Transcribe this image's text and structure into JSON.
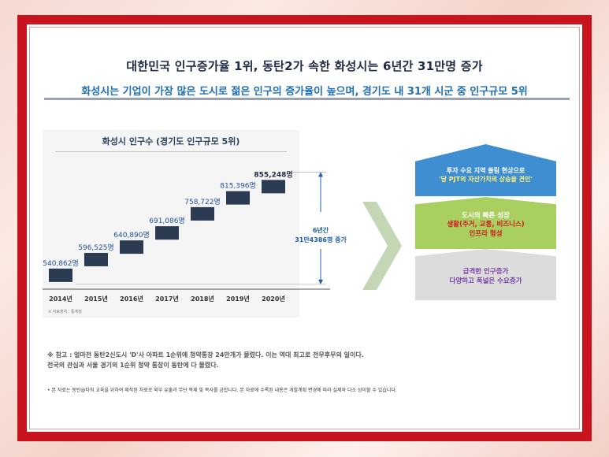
{
  "header": {
    "title": "대한민국 인구증가율 1위, 동탄2가 속한 화성시는 6년간 31만명 증가",
    "subtitle": "화성시는 기업이 가장 많은 도시로 젊은 인구의 증가율이 높으며, 경기도 내 31개 시군 중 인구규모 5위"
  },
  "chart_data": {
    "type": "bar",
    "title": "화성시 인구수 (경기도 인구규모 5위)",
    "categories": [
      "2014년",
      "2015년",
      "2016년",
      "2017년",
      "2018년",
      "2019년",
      "2020년"
    ],
    "values": [
      540862,
      596525,
      640890,
      691086,
      758722,
      815396,
      855248
    ],
    "value_labels": [
      "540,862명",
      "596,525명",
      "640,890명",
      "691,086명",
      "758,722명",
      "815,396명",
      "855,248명"
    ],
    "ylim": [
      500000,
      880000
    ],
    "bar_color": "#2b3c52",
    "annotation": {
      "line1": "6년간",
      "line2": "31만4386명 증가",
      "color": "#1f5fa8"
    },
    "source": "※ 자료출처 : 통계청"
  },
  "notes": {
    "line1": "※ 참고 : 얼마전 동탄2신도시 'D'사 아파트 1순위에 청약통장 24만개가 몰렸다. 이는 역대 최고로 전무후무의 일이다.",
    "line2": "전국의 관심과 서울 경기의 1순위 청약 통장이 동탄에 다 몰렸다.",
    "disclaimer": "• 본 자료는 동탄@타워 교육을 위하여 제작된 자료로 외부 유출과 무단 복제 및 복사를 금합니다. 본 자료에 수록된 내용은 개발계획 변경에 따라 실제와 다소 상이할 수 있습니다."
  },
  "diagram": {
    "top": {
      "line1": "투자 수요 지역 쏠림 현상으로",
      "line2": "'당 PJT의 자산가치의 상승을 견인'"
    },
    "middle": {
      "line1": "도시의 빠른 성장",
      "line2": "생활(주거, 교통, 비즈니스)",
      "line3": "인프라 형성"
    },
    "bottom": {
      "line1": "급격한 인구증가",
      "line2": "다양하고 폭넓은 수요증가"
    }
  }
}
